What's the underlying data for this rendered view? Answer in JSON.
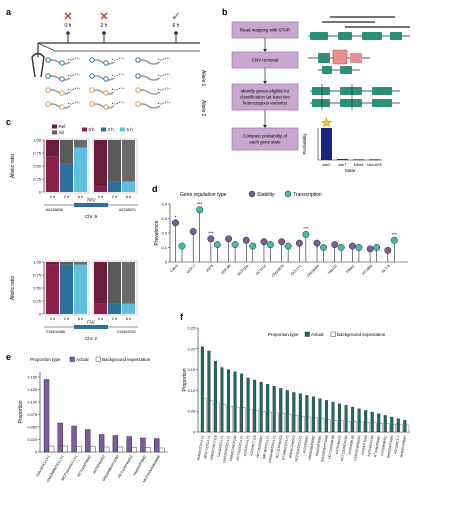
{
  "panel_letters": {
    "a": "a",
    "b": "b",
    "c": "c",
    "d": "d",
    "e": "e",
    "f": "f"
  },
  "colors": {
    "ref": "#6b1d3b",
    "alt": "#5e5e5e",
    "t0": "#8e1f4d",
    "t2": "#2a6f9e",
    "t6": "#5cc2dd",
    "purple": "#7b5aa0",
    "teal": "#3fbfa8",
    "darkteal": "#1f6b5d",
    "box": "#c9a8d0",
    "box_border": "#8d6aa1",
    "navy": "#1a237e",
    "gene_teal": "#2c8f7a",
    "gene_red": "#e89090",
    "red_x": "#d7403b",
    "green_check": "#4caf50"
  },
  "panel_a": {
    "timepoints": [
      {
        "label": "0 h",
        "mark": "✕",
        "state": "no"
      },
      {
        "label": "2 h",
        "mark": "✕",
        "state": "no"
      },
      {
        "label": "6 h",
        "mark": "✓",
        "state": "yes"
      }
    ],
    "allele_labels": [
      "Allele 1",
      "Allele 2"
    ]
  },
  "panel_b": {
    "steps": [
      "Read mapping with STAR",
      "CNV removal",
      "Identify genes eligible for classification (at least two heterozygous variants)",
      "Compute probability of each gene state"
    ],
    "star": "★",
    "bar_chart": {
      "type": "bar",
      "categories": [
        "sdbS",
        "sdbT",
        "Mixed",
        "Non-ASE"
      ],
      "values": [
        1.0,
        0.03,
        0.02,
        0.02
      ],
      "ylabel": "Probability",
      "xlabel": "State",
      "ylim": [
        0,
        1
      ]
    }
  },
  "panel_c": {
    "legend": {
      "ref": "Ref",
      "alt": "Alt",
      "t0": "0 h",
      "t2": "2 h",
      "t6": "6 h"
    },
    "top": {
      "ylabel": "Allelic ratio",
      "yticks": [
        "1.00",
        "0.75",
        "0.50",
        "0.25",
        "0"
      ],
      "gene": "TIP2",
      "pos_left": "69238806",
      "pos_right": "69238571",
      "chrom": "Chr. 9",
      "xticks": [
        "0 h",
        "2 h",
        "6 h"
      ],
      "gene_left": {
        "type": "bar",
        "categories": [
          "0 h",
          "2 h",
          "6 h"
        ],
        "ref_fraction": [
          0.32,
          0.45,
          0.15
        ]
      },
      "gene_right": {
        "type": "bar",
        "categories": [
          "0 h",
          "2 h",
          "6 h"
        ],
        "ref_fraction": [
          0.9,
          0.8,
          0.8
        ]
      }
    },
    "bottom": {
      "ylabel": "Allelic ratio",
      "yticks": [
        "1.00",
        "0.75",
        "0.50",
        "0.25",
        "0"
      ],
      "gene": "FN1",
      "pos_left": "215404486",
      "pos_right": "215403031",
      "chrom": "Chr. 2",
      "xticks": [
        "0 h",
        "2 h",
        "6 h"
      ],
      "gene_left": {
        "type": "bar",
        "categories": [
          "0 h",
          "2 h",
          "6 h"
        ],
        "ref_fraction": [
          0.05,
          0.05,
          0.05
        ]
      },
      "gene_right": {
        "type": "bar",
        "categories": [
          "0 h",
          "2 h",
          "6 h"
        ],
        "ref_fraction": [
          0.8,
          0.8,
          0.8
        ]
      }
    }
  },
  "panel_d": {
    "legend_title": "Gene regulation type",
    "legend_items": [
      "Stability",
      "Transcription"
    ],
    "chart_data": {
      "type": "scatter",
      "ylabel": "Prevalence",
      "ylim": [
        0,
        0.4
      ],
      "yticks": [
        "0",
        "0.1",
        "0.2",
        "0.3",
        "0.4"
      ],
      "categories": [
        "Calu3",
        "MCF-7",
        "A375",
        "IMR-90",
        "MCF10A",
        "HCT116",
        "GM12878",
        "OCI-LY1",
        "GM18486",
        "HepG2",
        "PBMC",
        "HT1080",
        "HCT-8"
      ],
      "series": [
        {
          "name": "Stability",
          "values": [
            0.27,
            0.21,
            0.16,
            0.16,
            0.15,
            0.14,
            0.14,
            0.13,
            0.13,
            0.12,
            0.11,
            0.09,
            0.08
          ]
        },
        {
          "name": "Transcription",
          "values": [
            0.11,
            0.36,
            0.12,
            0.12,
            0.11,
            0.12,
            0.11,
            0.19,
            0.1,
            0.1,
            0.1,
            0.1,
            0.15
          ]
        }
      ],
      "significance": [
        "*",
        "***",
        "***",
        "",
        "",
        "",
        "",
        "***",
        "",
        "",
        "",
        "",
        "***"
      ]
    }
  },
  "panel_e": {
    "legend_title": "Proportion type",
    "legend_items": [
      "Actual",
      "Background expectation"
    ],
    "chart_data": {
      "type": "bar",
      "ylabel": "Proportion",
      "ylim": [
        0,
        0.16
      ],
      "yticks": [
        "0",
        "0.025",
        "0.050",
        "0.075",
        "0.100",
        "0.125",
        "0.150"
      ],
      "categories": [
        "Calu3/OCI-LY1",
        "GM18486/OCI-LY1",
        "MCF10A/OCI-LY1",
        "HCT116/PBMC",
        "A375/HepG2",
        "GM18486/HT1080",
        "HCT116/HepG2",
        "HepG2/PBMC",
        "MCF10A/GM18486"
      ],
      "series": [
        {
          "name": "Actual",
          "values": [
            0.145,
            0.058,
            0.052,
            0.045,
            0.035,
            0.033,
            0.031,
            0.028,
            0.027
          ]
        },
        {
          "name": "Background expectation",
          "values": [
            0.012,
            0.012,
            0.011,
            0.011,
            0.01,
            0.01,
            0.009,
            0.009,
            0.008
          ]
        }
      ]
    }
  },
  "panel_f": {
    "legend_title": "Proportion type",
    "legend_items": [
      "Actual",
      "Background expectation"
    ],
    "chart_data": {
      "type": "bar",
      "ylabel": "Proportion",
      "ylim": [
        0,
        0.25
      ],
      "yticks": [
        "0",
        "0.05",
        "0.10",
        "0.15",
        "0.20",
        "0.25"
      ],
      "categories": [
        "HMVEC/OCI-LY1",
        "MCF-7/OCI-LY1",
        "HMVEC/HCT116",
        "Calu3/OCI-LY1",
        "GM12878/OCI-LY1",
        "HMVEC/MCF10A",
        "HCT116/OCI-LY1",
        "A375/OCI-LY1",
        "A375/HCT116",
        "HCT116/PBMC",
        "IMR-90/OCI-LY1",
        "GM18486/OCI-LY1",
        "HCT116/HepG2",
        "HT1080/OCI-LY1",
        "HMVEC/HepG2",
        "MCF10A/OCI-LY1",
        "A375/PBMC",
        "GM18486/PBMC",
        "HepG2/PBMC",
        "GM12878/HT1080",
        "HCT116/IMR-90",
        "A375/HepG2",
        "HCT116/MCF10A",
        "A375/IMR-90",
        "GM12878/HepG2",
        "A375/HT1080",
        "A375/MCF10A",
        "HT1080/PBMC",
        "A375/HMVEC",
        "HepG2/HT1080",
        "A375/MCF-7",
        "HMVEC/PBMC"
      ],
      "series": [
        {
          "name": "Actual",
          "values": [
            0.205,
            0.195,
            0.17,
            0.155,
            0.15,
            0.145,
            0.14,
            0.13,
            0.125,
            0.12,
            0.115,
            0.11,
            0.105,
            0.1,
            0.095,
            0.092,
            0.088,
            0.085,
            0.08,
            0.076,
            0.072,
            0.068,
            0.064,
            0.06,
            0.056,
            0.052,
            0.048,
            0.044,
            0.04,
            0.036,
            0.032,
            0.028
          ]
        },
        {
          "name": "Background expectation",
          "values": [
            0.08,
            0.075,
            0.07,
            0.066,
            0.062,
            0.06,
            0.058,
            0.055,
            0.052,
            0.05,
            0.048,
            0.046,
            0.044,
            0.042,
            0.04,
            0.038,
            0.036,
            0.034,
            0.032,
            0.03,
            0.028,
            0.027,
            0.026,
            0.025,
            0.024,
            0.023,
            0.022,
            0.021,
            0.02,
            0.019,
            0.018,
            0.017
          ]
        }
      ]
    }
  }
}
